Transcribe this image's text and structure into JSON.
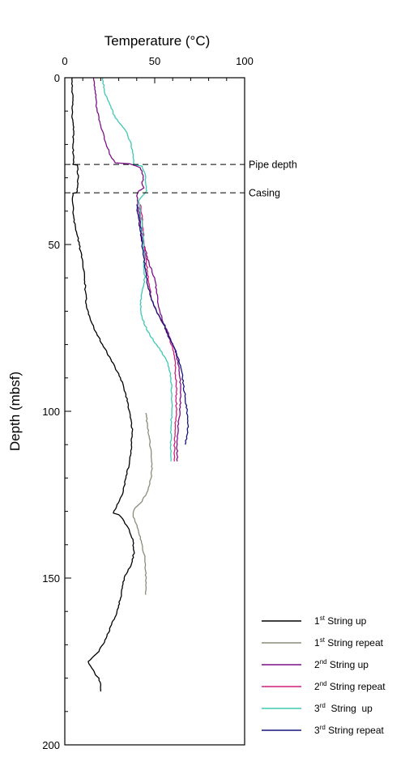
{
  "chart_data": {
    "type": "line",
    "xlabel": "Temperature (°C)",
    "ylabel": "Depth (mbsf)",
    "xlim": [
      0,
      100
    ],
    "ylim": [
      0,
      200
    ],
    "y_inverted": true,
    "x_axis_position": "top",
    "x_ticks": [
      {
        "value": 0,
        "label": "0"
      },
      {
        "value": 50,
        "label": "50"
      },
      {
        "value": 100,
        "label": "100"
      }
    ],
    "y_ticks": [
      {
        "value": 0,
        "label": "0"
      },
      {
        "value": 50,
        "label": "50"
      },
      {
        "value": 100,
        "label": "100"
      },
      {
        "value": 150,
        "label": "150"
      },
      {
        "value": 200,
        "label": "200"
      }
    ],
    "grid": false,
    "legend_position": "bottom-right",
    "annotations": [
      {
        "label": "Pipe depth",
        "depth": 26
      },
      {
        "label": "Casing",
        "depth": 34.5
      }
    ],
    "series": [
      {
        "name_pre": "1",
        "name_sup": "st",
        "name_post": " String up",
        "color": "#000000",
        "points": [
          [
            4,
            0
          ],
          [
            4,
            3
          ],
          [
            4.5,
            8
          ],
          [
            4,
            12
          ],
          [
            5,
            16
          ],
          [
            4.5,
            20
          ],
          [
            5,
            24
          ],
          [
            4.5,
            26
          ],
          [
            7,
            26.2
          ],
          [
            7.5,
            30
          ],
          [
            7,
            34
          ],
          [
            6.5,
            34.5
          ],
          [
            4.5,
            34.6
          ],
          [
            4.5,
            38
          ],
          [
            5,
            42
          ],
          [
            6,
            45
          ],
          [
            8,
            50
          ],
          [
            10,
            55
          ],
          [
            11,
            60
          ],
          [
            11.5,
            64
          ],
          [
            12,
            68
          ],
          [
            14,
            72
          ],
          [
            17,
            76
          ],
          [
            21,
            80
          ],
          [
            26,
            85
          ],
          [
            31,
            90
          ],
          [
            34,
            95
          ],
          [
            36,
            100
          ],
          [
            37,
            103
          ],
          [
            37.5,
            106
          ],
          [
            37,
            110
          ],
          [
            36,
            115
          ],
          [
            34,
            120
          ],
          [
            32,
            125
          ],
          [
            29,
            128
          ],
          [
            27,
            130.5
          ],
          [
            30,
            131
          ],
          [
            33,
            133
          ],
          [
            36,
            136
          ],
          [
            38,
            139
          ],
          [
            38.5,
            142
          ],
          [
            37.5,
            145
          ],
          [
            35,
            148
          ],
          [
            33,
            150
          ],
          [
            32,
            153
          ],
          [
            31,
            156
          ],
          [
            29,
            160
          ],
          [
            26,
            164
          ],
          [
            23,
            168
          ],
          [
            19,
            172
          ],
          [
            15,
            174
          ],
          [
            13,
            175
          ],
          [
            15,
            177
          ],
          [
            17,
            179
          ],
          [
            19,
            180
          ],
          [
            20,
            182
          ],
          [
            20,
            184
          ]
        ]
      },
      {
        "name_pre": "1",
        "name_sup": "st",
        "name_post": " String repeat",
        "color": "#8c8c78",
        "points": [
          [
            45,
            100.5
          ],
          [
            46,
            104
          ],
          [
            47,
            108
          ],
          [
            48,
            112
          ],
          [
            48.5,
            116
          ],
          [
            48,
            120
          ],
          [
            46,
            124
          ],
          [
            43,
            127
          ],
          [
            39,
            129
          ],
          [
            38,
            131
          ],
          [
            39,
            133
          ],
          [
            41,
            136
          ],
          [
            43,
            140
          ],
          [
            44.5,
            144
          ],
          [
            45,
            148
          ],
          [
            45,
            152
          ],
          [
            45,
            155
          ]
        ]
      },
      {
        "name_pre": "2",
        "name_sup": "nd",
        "name_post": " String up",
        "color": "#7d0f87",
        "points": [
          [
            16,
            0
          ],
          [
            17,
            4
          ],
          [
            17.5,
            8
          ],
          [
            19,
            12
          ],
          [
            21,
            16
          ],
          [
            23,
            20
          ],
          [
            26,
            24
          ],
          [
            28,
            25.5
          ],
          [
            36,
            25.8
          ],
          [
            40,
            26.5
          ],
          [
            42,
            27
          ],
          [
            43,
            28
          ],
          [
            43.5,
            30
          ],
          [
            43,
            32
          ],
          [
            44,
            33
          ],
          [
            41,
            34
          ],
          [
            40,
            35.5
          ],
          [
            40.5,
            38
          ],
          [
            41.5,
            41
          ],
          [
            42,
            44
          ],
          [
            43,
            48
          ],
          [
            45,
            52
          ],
          [
            47,
            56
          ],
          [
            50,
            60
          ],
          [
            51,
            64
          ],
          [
            52,
            68
          ],
          [
            54,
            72
          ],
          [
            57,
            76
          ],
          [
            60,
            80
          ],
          [
            62,
            82
          ],
          [
            63,
            86
          ],
          [
            64,
            90
          ],
          [
            64.5,
            95
          ],
          [
            64,
            100
          ],
          [
            63,
            105
          ],
          [
            62.5,
            110
          ],
          [
            62.5,
            115
          ]
        ]
      },
      {
        "name_pre": "2",
        "name_sup": "nd",
        "name_post": " String repeat",
        "color": "#d11f7b",
        "points": [
          [
            42,
            38
          ],
          [
            43,
            42
          ],
          [
            43.5,
            46
          ],
          [
            44,
            50
          ],
          [
            45,
            54
          ],
          [
            46,
            58
          ],
          [
            47,
            62
          ],
          [
            48,
            66
          ],
          [
            51,
            70
          ],
          [
            55,
            74
          ],
          [
            58,
            78
          ],
          [
            60,
            81
          ],
          [
            61,
            84
          ],
          [
            61.5,
            88
          ],
          [
            62,
            92
          ],
          [
            62,
            96
          ],
          [
            62,
            100
          ],
          [
            61.5,
            104
          ],
          [
            61,
            108
          ],
          [
            61,
            112
          ],
          [
            61,
            115
          ]
        ]
      },
      {
        "name_pre": "3",
        "name_sup": "rd",
        "name_post": "  String  up",
        "color": "#3fc8b2",
        "points": [
          [
            21,
            0
          ],
          [
            22,
            4
          ],
          [
            25,
            8
          ],
          [
            28,
            12
          ],
          [
            34,
            16
          ],
          [
            37,
            20
          ],
          [
            38,
            23
          ],
          [
            38.5,
            26
          ],
          [
            43,
            26.5
          ],
          [
            44,
            28
          ],
          [
            45,
            30
          ],
          [
            45,
            32
          ],
          [
            45.5,
            34
          ],
          [
            43,
            35.5
          ],
          [
            41,
            37
          ],
          [
            42,
            40
          ],
          [
            43,
            44
          ],
          [
            43.5,
            48
          ],
          [
            44,
            52
          ],
          [
            44,
            56
          ],
          [
            44.5,
            60
          ],
          [
            43,
            64
          ],
          [
            42,
            68
          ],
          [
            43,
            72
          ],
          [
            46,
            76
          ],
          [
            51,
            80
          ],
          [
            56,
            84
          ],
          [
            58,
            87
          ],
          [
            59,
            90
          ],
          [
            59.5,
            95
          ],
          [
            59.5,
            100
          ],
          [
            59,
            105
          ],
          [
            59,
            110
          ],
          [
            59,
            115
          ]
        ]
      },
      {
        "name_pre": "3",
        "name_sup": "rd",
        "name_post": " String repeat",
        "color": "#15157a",
        "points": [
          [
            40,
            38
          ],
          [
            41,
            42
          ],
          [
            42,
            46
          ],
          [
            43,
            50
          ],
          [
            44,
            54
          ],
          [
            45,
            58
          ],
          [
            46,
            62
          ],
          [
            48,
            66
          ],
          [
            51,
            70
          ],
          [
            55,
            74
          ],
          [
            58,
            78
          ],
          [
            61,
            81
          ],
          [
            63,
            84
          ],
          [
            65,
            88
          ],
          [
            66,
            92
          ],
          [
            67,
            96
          ],
          [
            68,
            100
          ],
          [
            68.5,
            104
          ],
          [
            68,
            107
          ],
          [
            67,
            110
          ]
        ]
      }
    ]
  }
}
